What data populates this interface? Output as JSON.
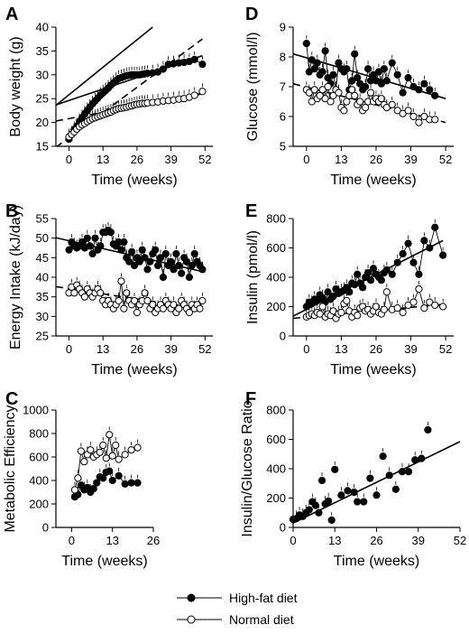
{
  "legend": {
    "items": [
      {
        "label": "High-fat diet",
        "marker": "filled"
      },
      {
        "label": "Normal diet",
        "marker": "open"
      }
    ]
  },
  "chart_data": [
    {
      "panel": "A",
      "type": "scatter",
      "xlabel": "Time (weeks)",
      "ylabel": "Body weight (g)",
      "xlim": [
        -5,
        55
      ],
      "ylim": [
        15,
        40
      ],
      "xticks": [
        0,
        13,
        26,
        39,
        52
      ],
      "yticks": [
        15,
        20,
        25,
        30,
        35,
        40
      ],
      "series": [
        {
          "marker": "filled",
          "connect": true,
          "x": [
            0,
            1,
            2,
            3,
            4,
            5,
            6,
            7,
            8,
            9,
            10,
            11,
            12,
            13,
            14,
            15,
            16,
            17,
            18,
            19,
            20,
            21,
            22,
            23,
            24,
            25,
            26,
            27,
            28,
            29,
            30,
            32,
            34,
            36,
            38,
            40,
            42,
            44,
            46,
            48,
            51
          ],
          "y": [
            16.5,
            17.5,
            18.5,
            19.2,
            20.2,
            21,
            21.8,
            22.5,
            23.2,
            23.9,
            24.5,
            25.1,
            25.7,
            26.2,
            26.7,
            27.2,
            27.8,
            28.3,
            28.8,
            29.2,
            29.4,
            29.6,
            29.8,
            29.9,
            30,
            30,
            30,
            30,
            30.1,
            30.2,
            30.3,
            30.4,
            30.6,
            31.2,
            32.2,
            32.3,
            32.5,
            32.6,
            32.8,
            33.2,
            32.2
          ]
        },
        {
          "marker": "open",
          "connect": true,
          "x": [
            0,
            1,
            2,
            3,
            4,
            5,
            6,
            7,
            8,
            9,
            10,
            11,
            12,
            13,
            14,
            15,
            16,
            17,
            18,
            19,
            20,
            21,
            22,
            23,
            24,
            25,
            26,
            27,
            28,
            29,
            30,
            32,
            34,
            36,
            38,
            40,
            42,
            44,
            46,
            48,
            51
          ],
          "y": [
            17,
            17.5,
            18,
            18.6,
            19.1,
            19.5,
            19.8,
            20.2,
            20.5,
            20.8,
            21,
            21.2,
            21.4,
            21.6,
            21.8,
            22,
            22.2,
            22.5,
            22.7,
            22.9,
            23,
            23.1,
            23.2,
            23.4,
            23.5,
            23.7,
            23.8,
            23.9,
            24,
            24,
            24.1,
            24.2,
            24.3,
            24.5,
            24.6,
            24.7,
            24.9,
            25,
            25.3,
            25.7,
            26.5
          ]
        }
      ],
      "lines": [
        {
          "style": "solid",
          "x": [
            -5,
            32
          ],
          "y": [
            23.6,
            40
          ]
        },
        {
          "style": "solid",
          "x": [
            -5,
            51
          ],
          "y": [
            23.7,
            34
          ]
        },
        {
          "style": "dashed",
          "x": [
            -5,
            51
          ],
          "y": [
            14.8,
            37.5
          ]
        },
        {
          "style": "dashed",
          "x": [
            -5,
            51
          ],
          "y": [
            20.3,
            26
          ]
        }
      ]
    },
    {
      "panel": "B",
      "type": "scatter",
      "xlabel": "Time (weeks)",
      "ylabel": "Energy Intake (kJ/day)",
      "xlim": [
        -5,
        55
      ],
      "ylim": [
        25,
        55
      ],
      "xticks": [
        0,
        13,
        26,
        39,
        52
      ],
      "yticks": [
        25,
        30,
        35,
        40,
        45,
        50,
        55
      ],
      "series": [
        {
          "marker": "filled",
          "connect": true,
          "x": [
            0,
            1,
            2,
            3,
            4,
            5,
            6,
            7,
            8,
            9,
            10,
            11,
            12,
            13,
            14,
            15,
            16,
            17,
            18,
            19,
            20,
            21,
            22,
            23,
            24,
            25,
            26,
            27,
            28,
            29,
            30,
            31,
            32,
            33,
            34,
            35,
            36,
            37,
            38,
            39,
            40,
            41,
            42,
            43,
            44,
            45,
            46,
            47,
            48,
            49,
            50,
            51
          ],
          "y": [
            47,
            49,
            48,
            47.5,
            48,
            49,
            47.5,
            50,
            48,
            46,
            50,
            47,
            48,
            51.5,
            51.5,
            52,
            51.5,
            48.5,
            48,
            49,
            47,
            49,
            45,
            44,
            46.5,
            43,
            45,
            44,
            47,
            45,
            42,
            44,
            46,
            47,
            43,
            45,
            40,
            46,
            43,
            44,
            42,
            46,
            43,
            41,
            45,
            44,
            40,
            43,
            46,
            44,
            43,
            42
          ]
        },
        {
          "marker": "open",
          "connect": true,
          "x": [
            0,
            1,
            2,
            3,
            4,
            5,
            6,
            7,
            8,
            9,
            10,
            11,
            12,
            13,
            14,
            15,
            16,
            17,
            18,
            19,
            20,
            21,
            22,
            23,
            24,
            25,
            26,
            27,
            28,
            29,
            30,
            31,
            32,
            33,
            34,
            35,
            36,
            37,
            38,
            39,
            40,
            41,
            42,
            43,
            44,
            45,
            46,
            47,
            48,
            49,
            50,
            51
          ],
          "y": [
            36,
            37.5,
            36,
            38,
            37,
            36,
            35,
            37,
            36,
            35,
            36,
            37,
            36,
            34,
            33,
            34,
            33,
            32,
            33,
            34,
            39,
            32,
            36,
            34,
            33,
            34,
            31,
            33,
            34,
            36,
            34,
            32,
            33,
            31,
            32,
            33,
            32,
            34,
            33,
            32,
            33,
            31,
            32,
            34,
            33,
            32,
            31,
            33,
            32,
            33,
            32,
            34
          ]
        }
      ],
      "lines": [
        {
          "style": "solid",
          "x": [
            -5,
            52
          ],
          "y": [
            50.1,
            41.3
          ]
        },
        {
          "style": "dashed",
          "x": [
            -5,
            52
          ],
          "y": [
            37.6,
            31.8
          ]
        }
      ]
    },
    {
      "panel": "C",
      "type": "scatter",
      "xlabel": "Time (weeks)",
      "ylabel": "Metabolic Efficiency",
      "xlim": [
        -5,
        26
      ],
      "ylim": [
        0,
        1000
      ],
      "xticks": [
        0,
        13,
        26
      ],
      "yticks": [
        0,
        200,
        400,
        600,
        800,
        1000
      ],
      "series": [
        {
          "marker": "filled",
          "connect": true,
          "x": [
            1,
            2,
            3,
            4,
            5,
            6,
            7,
            8,
            9,
            10,
            11,
            12,
            13,
            15,
            17,
            19,
            21
          ],
          "y": [
            260,
            280,
            360,
            320,
            340,
            300,
            330,
            380,
            430,
            420,
            470,
            480,
            400,
            440,
            370,
            380,
            380
          ]
        },
        {
          "marker": "open",
          "connect": true,
          "x": [
            1,
            2,
            3,
            4,
            5,
            6,
            7,
            8,
            9,
            10,
            11,
            12,
            13,
            14,
            15,
            17,
            19,
            21
          ],
          "y": [
            320,
            420,
            650,
            560,
            620,
            660,
            600,
            620,
            640,
            700,
            590,
            790,
            610,
            700,
            580,
            620,
            660,
            680
          ]
        }
      ],
      "lines": []
    },
    {
      "panel": "D",
      "type": "scatter",
      "xlabel": "Time (weeks)",
      "ylabel": "Glucose (mmol/l)",
      "xlim": [
        -5,
        55
      ],
      "ylim": [
        5,
        9
      ],
      "xticks": [
        0,
        13,
        26,
        39,
        52
      ],
      "yticks": [
        5,
        6,
        7,
        8,
        9
      ],
      "series": [
        {
          "marker": "filled",
          "connect": true,
          "x": [
            0,
            1,
            2,
            3,
            4,
            5,
            6,
            7,
            8,
            9,
            10,
            11,
            12,
            13,
            14,
            15,
            16,
            17,
            18,
            19,
            20,
            21,
            22,
            23,
            24,
            25,
            26,
            27,
            28,
            29,
            30,
            32,
            34,
            36,
            38,
            40,
            42,
            44,
            46,
            48
          ],
          "y": [
            8.45,
            7.5,
            7.9,
            7.6,
            7.8,
            7.4,
            7.5,
            8.2,
            7.3,
            7.1,
            7.4,
            6.9,
            7.8,
            7.6,
            7.5,
            7.6,
            6.9,
            7.2,
            8.1,
            7.3,
            7.1,
            6.9,
            7.0,
            7.6,
            7.2,
            7.4,
            7.2,
            7.5,
            7.1,
            7.6,
            7.2,
            7.8,
            7.4,
            6.8,
            7.3,
            7.0,
            6.9,
            7.1,
            6.9,
            6.7
          ]
        },
        {
          "marker": "open",
          "connect": true,
          "x": [
            0,
            1,
            2,
            3,
            4,
            5,
            6,
            7,
            8,
            9,
            10,
            11,
            12,
            13,
            14,
            15,
            16,
            17,
            18,
            19,
            20,
            21,
            22,
            23,
            24,
            25,
            26,
            27,
            28,
            29,
            30,
            32,
            34,
            36,
            38,
            40,
            42,
            44,
            46,
            48
          ],
          "y": [
            6.9,
            6.8,
            6.5,
            6.9,
            6.6,
            6.7,
            6.9,
            6.6,
            7.0,
            6.5,
            6.7,
            6.9,
            6.8,
            6.3,
            6.2,
            6.5,
            6.7,
            6.9,
            6.7,
            6.4,
            6.5,
            6.2,
            6.3,
            6.5,
            6.8,
            6.5,
            6.6,
            6.5,
            6.6,
            6.4,
            6.3,
            6.4,
            6.2,
            6.1,
            6.2,
            6.0,
            5.8,
            6.0,
            5.9,
            5.9
          ]
        }
      ],
      "lines": [
        {
          "style": "solid",
          "x": [
            -5,
            52
          ],
          "y": [
            8.1,
            6.6
          ]
        },
        {
          "style": "dashed",
          "x": [
            -5,
            52
          ],
          "y": [
            7.1,
            5.8
          ]
        }
      ]
    },
    {
      "panel": "E",
      "type": "scatter",
      "xlabel": "Time (weeks)",
      "ylabel": "Insulin (pmol/l)",
      "xlim": [
        -5,
        55
      ],
      "ylim": [
        0,
        800
      ],
      "xticks": [
        0,
        13,
        26,
        39,
        52
      ],
      "yticks": [
        0,
        200,
        400,
        600,
        800
      ],
      "series": [
        {
          "marker": "filled",
          "connect": true,
          "x": [
            0,
            1,
            2,
            3,
            4,
            5,
            6,
            7,
            8,
            9,
            10,
            11,
            12,
            13,
            14,
            15,
            16,
            17,
            18,
            19,
            20,
            21,
            22,
            23,
            24,
            25,
            26,
            27,
            28,
            29,
            30,
            32,
            34,
            36,
            38,
            40,
            42,
            44,
            46,
            48,
            51
          ],
          "y": [
            200,
            230,
            220,
            250,
            240,
            280,
            260,
            230,
            300,
            250,
            270,
            320,
            290,
            300,
            310,
            330,
            300,
            360,
            350,
            420,
            360,
            330,
            400,
            430,
            380,
            460,
            420,
            400,
            380,
            430,
            450,
            420,
            500,
            560,
            630,
            500,
            420,
            650,
            600,
            740,
            550
          ]
        },
        {
          "marker": "open",
          "connect": true,
          "x": [
            0,
            1,
            2,
            3,
            4,
            5,
            6,
            7,
            8,
            9,
            10,
            11,
            12,
            13,
            14,
            15,
            16,
            17,
            18,
            19,
            20,
            21,
            22,
            23,
            24,
            25,
            26,
            27,
            28,
            29,
            30,
            32,
            34,
            36,
            38,
            40,
            42,
            44,
            46,
            48,
            51
          ],
          "y": [
            130,
            140,
            150,
            140,
            160,
            150,
            200,
            130,
            150,
            140,
            170,
            120,
            150,
            160,
            220,
            240,
            170,
            130,
            160,
            140,
            190,
            200,
            170,
            180,
            150,
            170,
            200,
            160,
            150,
            180,
            300,
            180,
            190,
            160,
            210,
            230,
            320,
            190,
            230,
            210,
            200
          ]
        }
      ],
      "lines": [
        {
          "style": "solid",
          "x": [
            -5,
            51
          ],
          "y": [
            135,
            650
          ]
        },
        {
          "style": "dashed",
          "x": [
            -5,
            51
          ],
          "y": [
            120,
            215
          ]
        }
      ]
    },
    {
      "panel": "F",
      "type": "scatter",
      "xlabel": "Time (weeks)",
      "ylabel": "Insulin/Glucose Ratio",
      "xlim": [
        0,
        52
      ],
      "ylim": [
        0,
        800
      ],
      "xticks": [
        0,
        13,
        26,
        39,
        52
      ],
      "yticks": [
        0,
        200,
        400,
        600,
        800
      ],
      "series": [
        {
          "marker": "filled",
          "connect": false,
          "x": [
            0,
            1,
            2,
            3,
            4,
            5,
            6,
            7,
            8,
            9,
            10,
            11,
            12,
            13,
            15,
            17,
            19,
            20,
            22,
            24,
            26,
            28,
            30,
            32,
            34,
            36,
            38,
            40,
            42
          ],
          "y": [
            55,
            60,
            85,
            75,
            100,
            120,
            175,
            150,
            100,
            320,
            160,
            180,
            50,
            395,
            220,
            250,
            240,
            175,
            175,
            335,
            220,
            485,
            355,
            260,
            380,
            380,
            460,
            470,
            665
          ]
        }
      ],
      "lines": [
        {
          "style": "solid",
          "x": [
            0,
            52
          ],
          "y": [
            30,
            585
          ]
        }
      ]
    }
  ]
}
